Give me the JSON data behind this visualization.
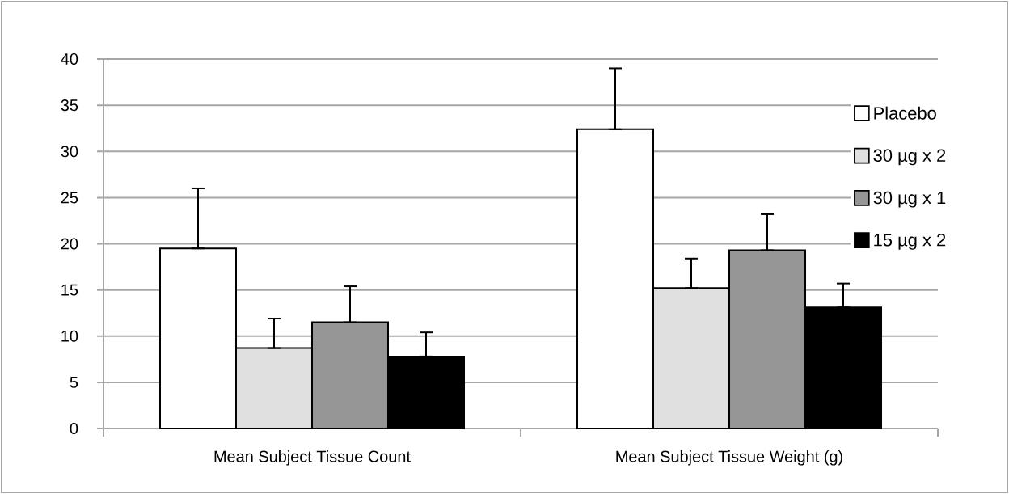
{
  "chart_data": {
    "type": "bar",
    "categories": [
      "Mean Subject Tissue Count",
      "Mean Subject Tissue Weight (g)"
    ],
    "series": [
      {
        "name": "Placebo",
        "color": "#ffffff",
        "values": [
          19.5,
          32.4
        ],
        "errors": [
          [
            19.5,
            26.0
          ],
          [
            32.4,
            39.0
          ]
        ]
      },
      {
        "name": "30 µg x 2",
        "color": "#e0e0e0",
        "values": [
          8.7,
          15.2
        ],
        "errors": [
          [
            8.7,
            11.9
          ],
          [
            15.2,
            18.4
          ]
        ]
      },
      {
        "name": "30 µg x 1",
        "color": "#969696",
        "values": [
          11.5,
          19.3
        ],
        "errors": [
          [
            11.5,
            15.4
          ],
          [
            19.3,
            23.2
          ]
        ]
      },
      {
        "name": "15 µg x 2",
        "color": "#000000",
        "values": [
          7.8,
          13.1
        ],
        "errors": [
          [
            7.8,
            10.4
          ],
          [
            13.1,
            15.7
          ]
        ]
      }
    ],
    "ylim": [
      0,
      40
    ],
    "yticks": [
      0,
      5,
      10,
      15,
      20,
      25,
      30,
      35,
      40
    ],
    "grid": "y",
    "legend": "right"
  }
}
